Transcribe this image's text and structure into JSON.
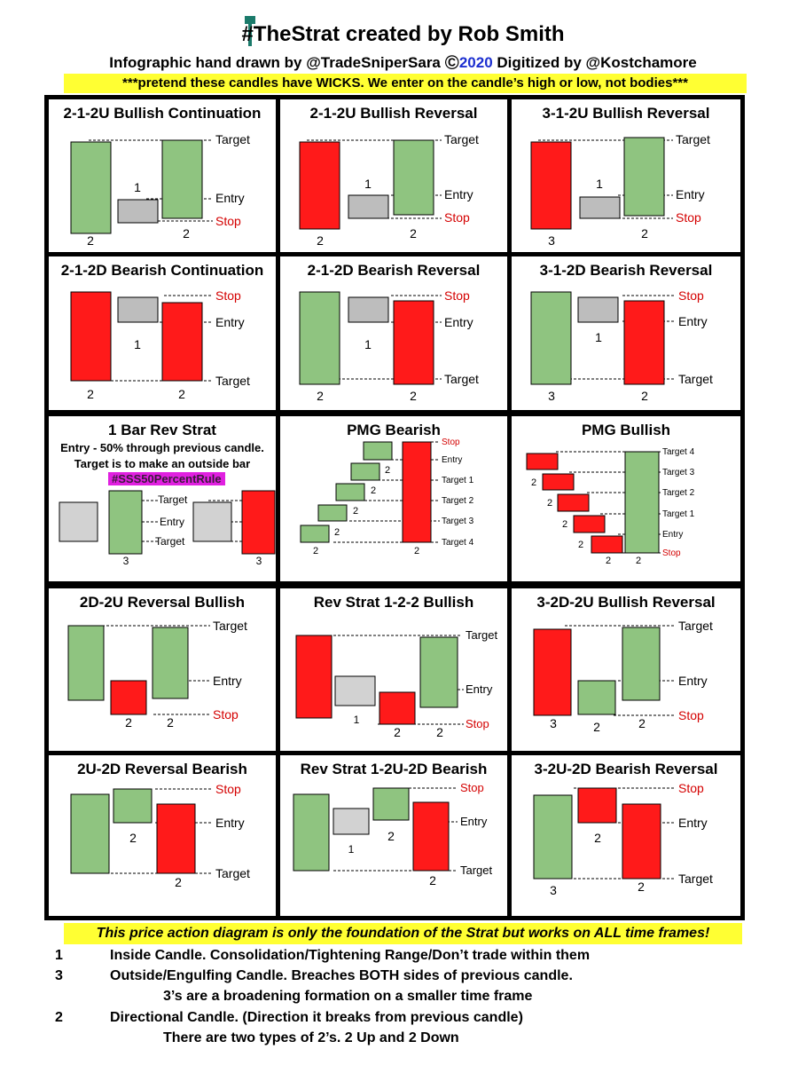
{
  "header": {
    "title": "#TheStrat created by Rob Smith",
    "subtitle_pre": "Infographic hand drawn by @TradeSniperSara",
    "copyright_symbol": "©",
    "subtitle_year": "2020",
    "subtitle_post": "Digitized by @Kostchamore",
    "note": "***pretend these candles have WICKS. We enter on the candle’s high or low, not bodies***"
  },
  "colors": {
    "green": "#8fc480",
    "red": "#ff1a1a",
    "gray": "#bdbdbd",
    "stop_red": "#d40000",
    "highlight_yellow": "#ffff33",
    "tag_magenta": "#e020e0"
  },
  "labels": {
    "target": "Target",
    "entry": "Entry",
    "stop": "Stop",
    "target1": "Target 1",
    "target2": "Target 2",
    "target3": "Target 3",
    "target4": "Target 4"
  },
  "panels": [
    {
      "title": "2-1-2U Bullish Continuation",
      "candles": [
        "2",
        "1",
        "2"
      ]
    },
    {
      "title": "2-1-2U Bullish Reversal",
      "candles": [
        "2",
        "1",
        "2"
      ]
    },
    {
      "title": "3-1-2U Bullish Reversal",
      "candles": [
        "3",
        "1",
        "2"
      ]
    },
    {
      "title": "2-1-2D Bearish Continuation",
      "candles": [
        "2",
        "1",
        "2"
      ]
    },
    {
      "title": "2-1-2D Bearish Reversal",
      "candles": [
        "2",
        "1",
        "2"
      ]
    },
    {
      "title": "3-1-2D Bearish Reversal",
      "candles": [
        "3",
        "1",
        "2"
      ]
    },
    {
      "title": "1 Bar Rev Strat",
      "sub1": "Entry - 50% through previous candle.",
      "sub2": "Target is to make an outside bar",
      "tag": "#SSS50PercentRule",
      "candles": [
        "3",
        "3"
      ]
    },
    {
      "title": "PMG Bearish",
      "candles": [
        "2",
        "2",
        "2",
        "2",
        "2"
      ]
    },
    {
      "title": "PMG Bullish",
      "candles": [
        "2",
        "2",
        "2",
        "2",
        "2",
        "2"
      ]
    },
    {
      "title": "2D-2U Reversal Bullish",
      "candles": [
        "2",
        "2"
      ]
    },
    {
      "title": "Rev Strat 1-2-2 Bullish",
      "candles": [
        "1",
        "2",
        "2"
      ]
    },
    {
      "title": "3-2D-2U Bullish Reversal",
      "candles": [
        "3",
        "2",
        "2"
      ]
    },
    {
      "title": "2U-2D Reversal Bearish",
      "candles": [
        "2",
        "2"
      ]
    },
    {
      "title": "Rev Strat 1-2U-2D Bearish",
      "candles": [
        "1",
        "2",
        "2"
      ]
    },
    {
      "title": "3-2U-2D Bearish Reversal",
      "candles": [
        "3",
        "2",
        "2"
      ]
    }
  ],
  "footer": {
    "note": "This price action diagram is only the foundation of the Strat but works on ALL time frames!",
    "legend": [
      {
        "num": "1",
        "text": "Inside Candle. Consolidation/Tightening Range/Don’t trade within them"
      },
      {
        "num": "3",
        "text": "Outside/Engulfing Candle. Breaches BOTH sides of previous candle."
      },
      {
        "num": "",
        "text": "3’s are a broadening formation on a smaller time frame"
      },
      {
        "num": "2",
        "text": "Directional Candle. (Direction it breaks from previous candle)"
      },
      {
        "num": "",
        "text": "There are two types of 2’s. 2 Up and 2 Down"
      }
    ]
  }
}
